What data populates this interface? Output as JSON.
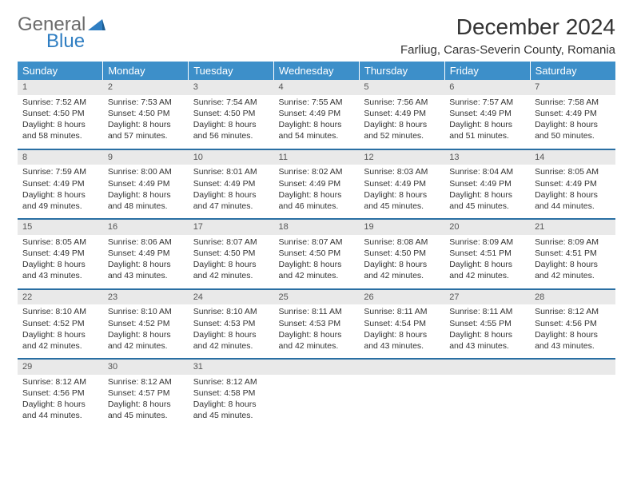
{
  "logo": {
    "line1": "General",
    "line2": "Blue"
  },
  "title": "December 2024",
  "location": "Farliug, Caras-Severin County, Romania",
  "colors": {
    "header_bg": "#3d8fc9",
    "header_text": "#ffffff",
    "row_border": "#2a6fa3",
    "daynum_bg": "#e9e9e9",
    "logo_blue": "#2f7ec2"
  },
  "weekdays": [
    "Sunday",
    "Monday",
    "Tuesday",
    "Wednesday",
    "Thursday",
    "Friday",
    "Saturday"
  ],
  "weeks": [
    [
      {
        "n": "1",
        "sr": "Sunrise: 7:52 AM",
        "ss": "Sunset: 4:50 PM",
        "d1": "Daylight: 8 hours",
        "d2": "and 58 minutes."
      },
      {
        "n": "2",
        "sr": "Sunrise: 7:53 AM",
        "ss": "Sunset: 4:50 PM",
        "d1": "Daylight: 8 hours",
        "d2": "and 57 minutes."
      },
      {
        "n": "3",
        "sr": "Sunrise: 7:54 AM",
        "ss": "Sunset: 4:50 PM",
        "d1": "Daylight: 8 hours",
        "d2": "and 56 minutes."
      },
      {
        "n": "4",
        "sr": "Sunrise: 7:55 AM",
        "ss": "Sunset: 4:49 PM",
        "d1": "Daylight: 8 hours",
        "d2": "and 54 minutes."
      },
      {
        "n": "5",
        "sr": "Sunrise: 7:56 AM",
        "ss": "Sunset: 4:49 PM",
        "d1": "Daylight: 8 hours",
        "d2": "and 52 minutes."
      },
      {
        "n": "6",
        "sr": "Sunrise: 7:57 AM",
        "ss": "Sunset: 4:49 PM",
        "d1": "Daylight: 8 hours",
        "d2": "and 51 minutes."
      },
      {
        "n": "7",
        "sr": "Sunrise: 7:58 AM",
        "ss": "Sunset: 4:49 PM",
        "d1": "Daylight: 8 hours",
        "d2": "and 50 minutes."
      }
    ],
    [
      {
        "n": "8",
        "sr": "Sunrise: 7:59 AM",
        "ss": "Sunset: 4:49 PM",
        "d1": "Daylight: 8 hours",
        "d2": "and 49 minutes."
      },
      {
        "n": "9",
        "sr": "Sunrise: 8:00 AM",
        "ss": "Sunset: 4:49 PM",
        "d1": "Daylight: 8 hours",
        "d2": "and 48 minutes."
      },
      {
        "n": "10",
        "sr": "Sunrise: 8:01 AM",
        "ss": "Sunset: 4:49 PM",
        "d1": "Daylight: 8 hours",
        "d2": "and 47 minutes."
      },
      {
        "n": "11",
        "sr": "Sunrise: 8:02 AM",
        "ss": "Sunset: 4:49 PM",
        "d1": "Daylight: 8 hours",
        "d2": "and 46 minutes."
      },
      {
        "n": "12",
        "sr": "Sunrise: 8:03 AM",
        "ss": "Sunset: 4:49 PM",
        "d1": "Daylight: 8 hours",
        "d2": "and 45 minutes."
      },
      {
        "n": "13",
        "sr": "Sunrise: 8:04 AM",
        "ss": "Sunset: 4:49 PM",
        "d1": "Daylight: 8 hours",
        "d2": "and 45 minutes."
      },
      {
        "n": "14",
        "sr": "Sunrise: 8:05 AM",
        "ss": "Sunset: 4:49 PM",
        "d1": "Daylight: 8 hours",
        "d2": "and 44 minutes."
      }
    ],
    [
      {
        "n": "15",
        "sr": "Sunrise: 8:05 AM",
        "ss": "Sunset: 4:49 PM",
        "d1": "Daylight: 8 hours",
        "d2": "and 43 minutes."
      },
      {
        "n": "16",
        "sr": "Sunrise: 8:06 AM",
        "ss": "Sunset: 4:49 PM",
        "d1": "Daylight: 8 hours",
        "d2": "and 43 minutes."
      },
      {
        "n": "17",
        "sr": "Sunrise: 8:07 AM",
        "ss": "Sunset: 4:50 PM",
        "d1": "Daylight: 8 hours",
        "d2": "and 42 minutes."
      },
      {
        "n": "18",
        "sr": "Sunrise: 8:07 AM",
        "ss": "Sunset: 4:50 PM",
        "d1": "Daylight: 8 hours",
        "d2": "and 42 minutes."
      },
      {
        "n": "19",
        "sr": "Sunrise: 8:08 AM",
        "ss": "Sunset: 4:50 PM",
        "d1": "Daylight: 8 hours",
        "d2": "and 42 minutes."
      },
      {
        "n": "20",
        "sr": "Sunrise: 8:09 AM",
        "ss": "Sunset: 4:51 PM",
        "d1": "Daylight: 8 hours",
        "d2": "and 42 minutes."
      },
      {
        "n": "21",
        "sr": "Sunrise: 8:09 AM",
        "ss": "Sunset: 4:51 PM",
        "d1": "Daylight: 8 hours",
        "d2": "and 42 minutes."
      }
    ],
    [
      {
        "n": "22",
        "sr": "Sunrise: 8:10 AM",
        "ss": "Sunset: 4:52 PM",
        "d1": "Daylight: 8 hours",
        "d2": "and 42 minutes."
      },
      {
        "n": "23",
        "sr": "Sunrise: 8:10 AM",
        "ss": "Sunset: 4:52 PM",
        "d1": "Daylight: 8 hours",
        "d2": "and 42 minutes."
      },
      {
        "n": "24",
        "sr": "Sunrise: 8:10 AM",
        "ss": "Sunset: 4:53 PM",
        "d1": "Daylight: 8 hours",
        "d2": "and 42 minutes."
      },
      {
        "n": "25",
        "sr": "Sunrise: 8:11 AM",
        "ss": "Sunset: 4:53 PM",
        "d1": "Daylight: 8 hours",
        "d2": "and 42 minutes."
      },
      {
        "n": "26",
        "sr": "Sunrise: 8:11 AM",
        "ss": "Sunset: 4:54 PM",
        "d1": "Daylight: 8 hours",
        "d2": "and 43 minutes."
      },
      {
        "n": "27",
        "sr": "Sunrise: 8:11 AM",
        "ss": "Sunset: 4:55 PM",
        "d1": "Daylight: 8 hours",
        "d2": "and 43 minutes."
      },
      {
        "n": "28",
        "sr": "Sunrise: 8:12 AM",
        "ss": "Sunset: 4:56 PM",
        "d1": "Daylight: 8 hours",
        "d2": "and 43 minutes."
      }
    ],
    [
      {
        "n": "29",
        "sr": "Sunrise: 8:12 AM",
        "ss": "Sunset: 4:56 PM",
        "d1": "Daylight: 8 hours",
        "d2": "and 44 minutes."
      },
      {
        "n": "30",
        "sr": "Sunrise: 8:12 AM",
        "ss": "Sunset: 4:57 PM",
        "d1": "Daylight: 8 hours",
        "d2": "and 45 minutes."
      },
      {
        "n": "31",
        "sr": "Sunrise: 8:12 AM",
        "ss": "Sunset: 4:58 PM",
        "d1": "Daylight: 8 hours",
        "d2": "and 45 minutes."
      },
      {
        "empty": true
      },
      {
        "empty": true
      },
      {
        "empty": true
      },
      {
        "empty": true
      }
    ]
  ]
}
